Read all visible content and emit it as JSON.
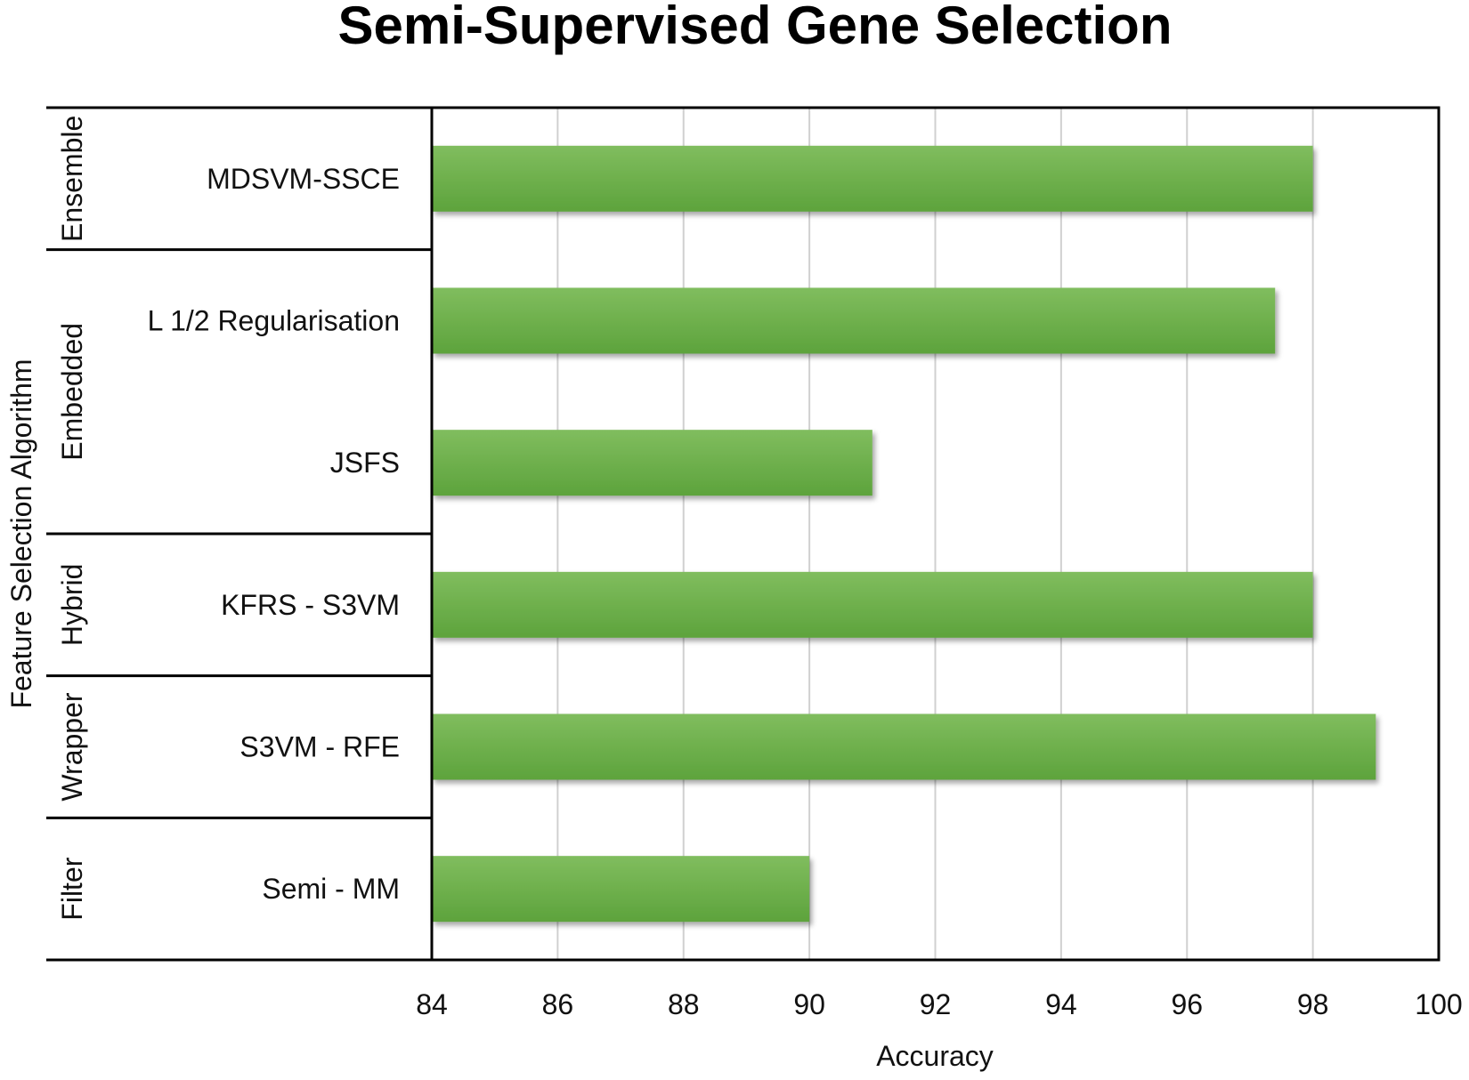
{
  "chart_data": {
    "type": "bar",
    "orientation": "horizontal",
    "title": "Semi-Supervised Gene Selection",
    "xlabel": "Accuracy",
    "ylabel": "Feature Selection Algorithm",
    "xlim": [
      84,
      100
    ],
    "xticks": [
      84,
      86,
      88,
      90,
      92,
      94,
      96,
      98,
      100
    ],
    "grid": "vertical",
    "bar_color": "#6aaf4a",
    "categories": [
      "MDSVM-SSCE",
      "L 1/2 Regularisation",
      "JSFS",
      "KFRS - S3VM",
      "S3VM - RFE",
      "Semi - MM"
    ],
    "values": [
      98,
      97.4,
      91,
      98,
      99,
      90
    ],
    "groups": [
      {
        "label": "Ensemble",
        "categories": [
          "MDSVM-SSCE"
        ]
      },
      {
        "label": "Embedded",
        "categories": [
          "L 1/2 Regularisation",
          "JSFS"
        ]
      },
      {
        "label": "Hybrid",
        "categories": [
          "KFRS - S3VM"
        ]
      },
      {
        "label": "Wrapper",
        "categories": [
          "S3VM - RFE"
        ]
      },
      {
        "label": "Filter",
        "categories": [
          "Semi - MM"
        ]
      }
    ]
  }
}
